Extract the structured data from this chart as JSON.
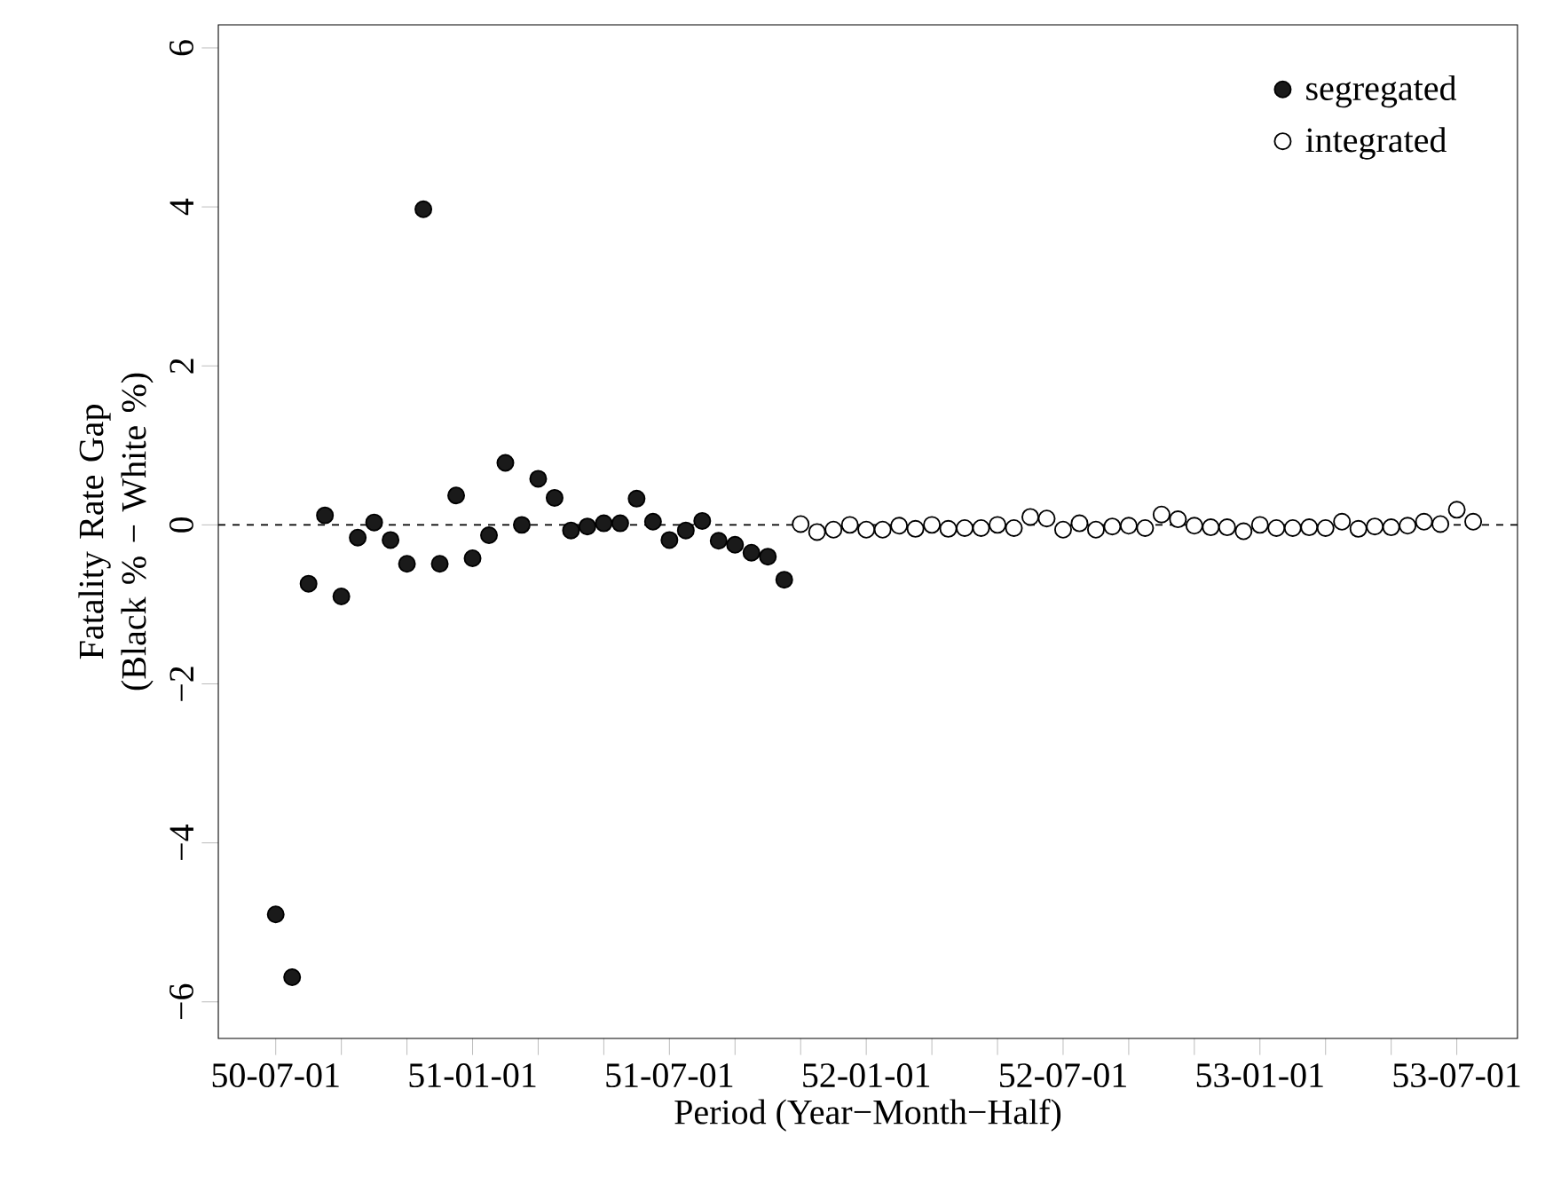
{
  "chart_data": {
    "type": "scatter",
    "xlabel": "Period (Year−Month−Half)",
    "ylabel": "Fatality Rate Gap (Black % − White %)",
    "categories": [
      "50-07-01",
      null,
      null,
      null,
      null,
      null,
      null,
      null,
      null,
      null,
      null,
      null,
      "51-01-01",
      null,
      null,
      null,
      null,
      null,
      null,
      null,
      null,
      null,
      null,
      null,
      "51-07-01",
      null,
      null,
      null,
      null,
      null,
      null,
      null,
      null,
      null,
      null,
      null,
      "52-01-01",
      null,
      null,
      null,
      null,
      null,
      null,
      null,
      null,
      null,
      null,
      null,
      "52-07-01",
      null,
      null,
      null,
      null,
      null,
      null,
      null,
      null,
      null,
      null,
      null,
      "53-01-01",
      null,
      null,
      null,
      null,
      null,
      null,
      null,
      null,
      null,
      null,
      null,
      "53-07-01",
      null
    ],
    "ylim": [
      -6.46,
      6.29
    ],
    "yticks": [
      {
        "value": -6,
        "label": "−6"
      },
      {
        "value": -4,
        "label": "−4"
      },
      {
        "value": -2,
        "label": "−2"
      },
      0,
      2,
      4,
      6
    ],
    "marker": "circle",
    "legend": "top right",
    "ref_lines": [
      {
        "axis": "y",
        "value": 0,
        "line_style": "dashed",
        "color": "#000000"
      }
    ],
    "series": [
      {
        "name": "segregated",
        "color": "#1a1a1a",
        "values": [
          -4.9,
          -5.69,
          -0.74,
          0.12,
          -0.9,
          -0.16,
          0.03,
          -0.19,
          -0.49,
          3.97,
          -0.49,
          0.37,
          -0.42,
          -0.13,
          0.78,
          0.0,
          0.58,
          0.34,
          -0.07,
          -0.02,
          0.02,
          0.02,
          0.33,
          0.04,
          -0.19,
          -0.07,
          0.05,
          -0.2,
          -0.25,
          -0.35,
          -0.4,
          -0.69,
          null,
          null,
          null,
          null,
          null,
          null,
          null,
          null,
          null,
          null,
          null,
          null,
          null,
          null,
          null,
          null,
          null,
          null,
          null,
          null,
          null,
          null,
          null,
          null,
          null,
          null,
          null,
          null,
          null,
          null,
          null,
          null,
          null,
          null,
          null,
          null,
          null,
          null,
          null,
          null,
          null,
          null
        ]
      },
      {
        "name": "integrated",
        "color": "#ffffff",
        "values": [
          null,
          null,
          null,
          null,
          null,
          null,
          null,
          null,
          null,
          null,
          null,
          null,
          null,
          null,
          null,
          null,
          null,
          null,
          null,
          null,
          null,
          null,
          null,
          null,
          null,
          null,
          null,
          null,
          null,
          null,
          null,
          null,
          0.01,
          -0.09,
          -0.06,
          0.0,
          -0.06,
          -0.06,
          -0.01,
          -0.05,
          0.0,
          -0.05,
          -0.04,
          -0.04,
          0.0,
          -0.04,
          0.1,
          0.08,
          -0.06,
          0.02,
          -0.06,
          -0.02,
          -0.01,
          -0.04,
          0.13,
          0.07,
          -0.01,
          -0.03,
          -0.03,
          -0.08,
          0.0,
          -0.04,
          -0.04,
          -0.03,
          -0.04,
          0.04,
          -0.05,
          -0.02,
          -0.03,
          -0.01,
          0.04,
          0.01,
          0.19,
          0.04
        ]
      }
    ]
  }
}
